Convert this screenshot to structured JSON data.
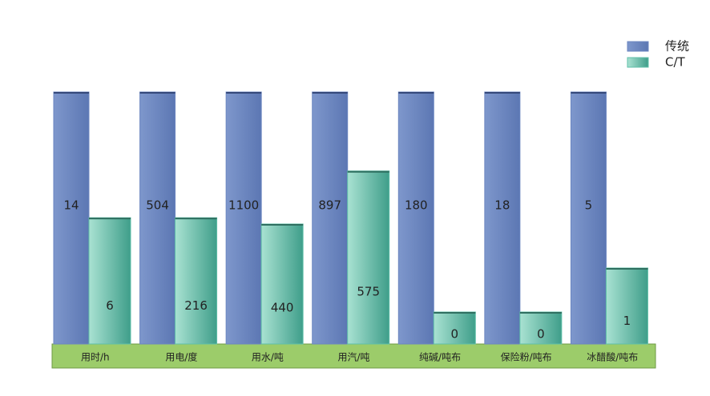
{
  "chart_data": {
    "type": "bar",
    "categories": [
      "用时/h",
      "用电/度",
      "用水/吨",
      "用汽/吨",
      "纯碱/吨布",
      "保险粉/吨布",
      "冰醋酸/吨布"
    ],
    "series": [
      {
        "name": "传统",
        "color": "#6b86c0",
        "values": [
          14,
          504,
          1100,
          897,
          180,
          18,
          5
        ]
      },
      {
        "name": "C/T",
        "color": "#5fbfa8",
        "values": [
          6,
          216,
          440,
          575,
          0,
          0,
          1
        ]
      }
    ],
    "legend": "top-right"
  }
}
